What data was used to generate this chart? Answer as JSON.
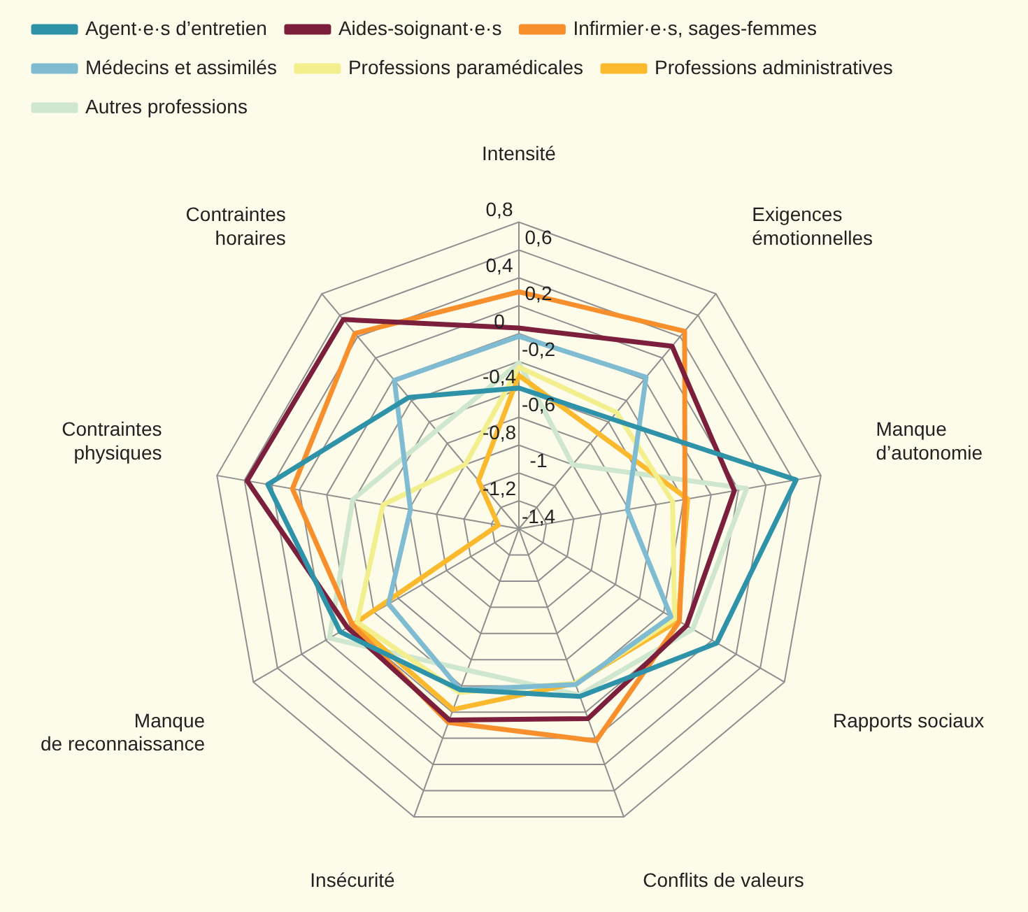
{
  "chart_data": {
    "type": "radar",
    "categories": [
      "Intensité",
      "Exigences\némotionnelles",
      "Manque\nd’autonomie",
      "Rapports sociaux",
      "Conflits de valeurs",
      "Insécurité",
      "Manque\nde reconnaissance",
      "Contraintes\nphysiques",
      "Contraintes\nhoraires"
    ],
    "series": [
      {
        "name": "Agent·e·s d’entretien",
        "color": "#2e93a8",
        "values": [
          -0.39,
          -0.37,
          0.62,
          0.24,
          -0.12,
          -0.17,
          0.08,
          0.43,
          -0.17
        ]
      },
      {
        "name": "Aides-soignant·e·s",
        "color": "#7b1f3c",
        "values": [
          0.04,
          0.31,
          0.17,
          -0.01,
          0.05,
          0.06,
          0.02,
          0.58,
          0.56
        ]
      },
      {
        "name": "Infirmier·e·s, sages-femmes",
        "color": "#f7902c",
        "values": [
          0.3,
          0.45,
          -0.19,
          -0.07,
          0.22,
          0.08,
          -0.02,
          0.25,
          0.43
        ]
      },
      {
        "name": "Médecins et assimilés",
        "color": "#7fbcd2",
        "values": [
          -0.02,
          0.02,
          -0.61,
          -0.14,
          -0.21,
          -0.17,
          -0.32,
          -0.61,
          -0.01
        ]
      },
      {
        "name": "Professions paramédicales",
        "color": "#f2ef8c",
        "values": [
          -0.24,
          -0.31,
          -0.28,
          -0.11,
          -0.22,
          -0.15,
          -0.06,
          -0.41,
          -0.8
        ]
      },
      {
        "name": "Professions administratives",
        "color": "#fbb92e",
        "values": [
          -0.3,
          -0.51,
          -0.17,
          -0.08,
          -0.22,
          -0.02,
          -0.04,
          -1.25,
          -0.95
        ]
      },
      {
        "name": "Autres professions",
        "color": "#cfe6cf",
        "values": [
          -0.21,
          -0.8,
          0.26,
          0.04,
          -0.13,
          -0.32,
          0.17,
          -0.19,
          -0.48
        ]
      }
    ],
    "ylim": [
      -1.4,
      0.8
    ],
    "yticks": [
      {
        "value": -1.4,
        "label": "-1,4"
      },
      {
        "value": -1.2,
        "label": "-1,2"
      },
      {
        "value": -1,
        "label": "-1"
      },
      {
        "value": -0.8,
        "label": "-0,8"
      },
      {
        "value": -0.6,
        "label": "-0,6"
      },
      {
        "value": -0.4,
        "label": "-0,4"
      },
      {
        "value": -0.2,
        "label": "-0,2"
      },
      {
        "value": 0,
        "label": "0"
      },
      {
        "value": 0.2,
        "label": "0,2"
      },
      {
        "value": 0.4,
        "label": "0,4"
      },
      {
        "value": 0.6,
        "label": "0,6"
      },
      {
        "value": 0.8,
        "label": "0,8"
      }
    ],
    "grid": true,
    "legend": "top",
    "marker": "none",
    "line_style": "solid"
  }
}
